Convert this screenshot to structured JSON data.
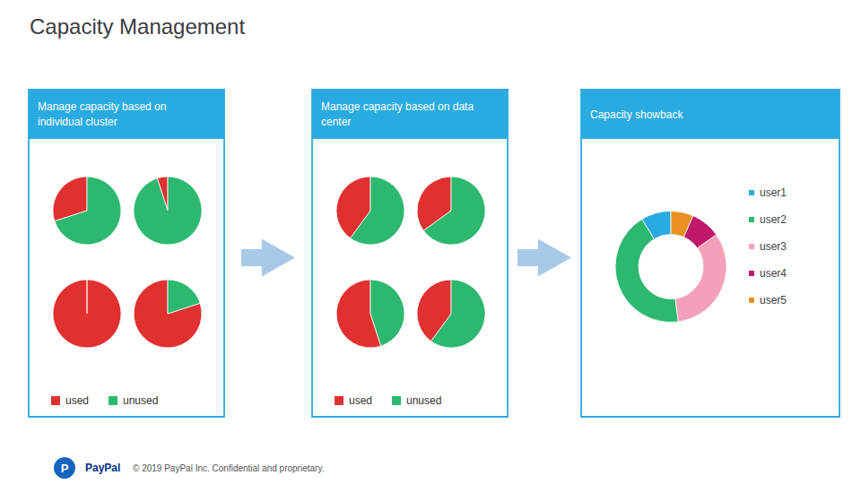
{
  "title": "Capacity Management",
  "annotations": [
    "P",
    "PayPal",
    "© 2019 PayPal Inc. Confidential and proprietary."
  ],
  "chart_data": [
    {
      "type": "pie",
      "title": "Manage capacity based on\nindividual cluster",
      "categories": [
        "used",
        "unused"
      ],
      "colors": [
        "#e03030",
        "#2db870"
      ],
      "series": [
        {
          "values": [
            30,
            70
          ]
        },
        {
          "values": [
            5,
            95
          ]
        },
        {
          "values": [
            100,
            0
          ]
        },
        {
          "values": [
            80,
            20
          ]
        }
      ],
      "legend": "bottom"
    },
    {
      "type": "pie",
      "title": "Manage capacity based on data\ncenter",
      "categories": [
        "used",
        "unused"
      ],
      "colors": [
        "#e03030",
        "#2db870"
      ],
      "series": [
        {
          "values": [
            40,
            60
          ]
        },
        {
          "values": [
            35,
            65
          ]
        },
        {
          "values": [
            55,
            45
          ]
        },
        {
          "values": [
            40,
            60
          ]
        }
      ],
      "legend": "bottom"
    },
    {
      "type": "donut",
      "title": "Capacity showback",
      "categories": [
        "user1",
        "user2",
        "user3",
        "user4",
        "user5"
      ],
      "values": [
        8,
        40,
        30,
        8,
        6
      ],
      "colors": [
        "#29abe2",
        "#2db870",
        "#f4a0b8",
        "#c0186a",
        "#e89020"
      ],
      "legend": "right"
    }
  ]
}
